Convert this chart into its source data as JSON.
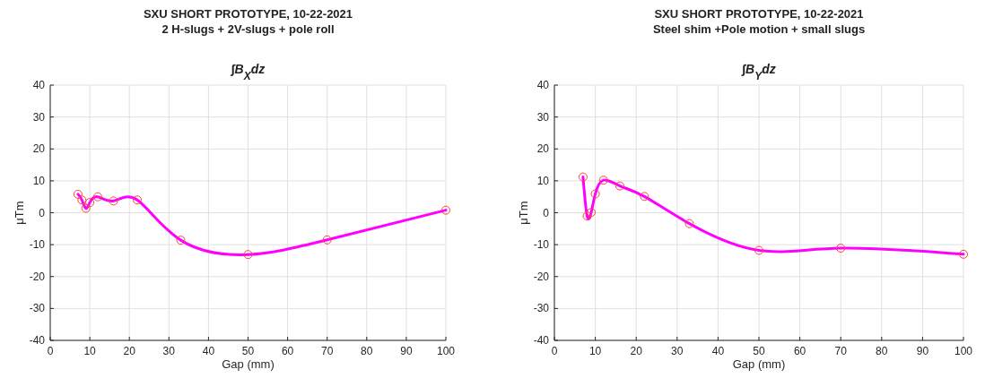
{
  "chart_data": [
    {
      "type": "line",
      "title": "SXU SHORT PROTOTYPE, 10-22-2021\n2 H-slugs + 2V-slugs + pole roll",
      "subtitle": "∫B$_{X}$dz",
      "xlabel": "Gap (mm)",
      "ylabel": "μTm",
      "xlim": [
        0,
        100
      ],
      "ylim": [
        -40,
        40
      ],
      "xticks": [
        0,
        10,
        20,
        30,
        40,
        50,
        60,
        70,
        80,
        90,
        100
      ],
      "yticks": [
        -40,
        -30,
        -20,
        -10,
        0,
        10,
        20,
        30,
        40
      ],
      "grid": true,
      "series": [
        {
          "color": "#ff00ff",
          "line_style": "solid",
          "marker": "none",
          "x": [
            7,
            8,
            9,
            10,
            12,
            16,
            22,
            33,
            50,
            70,
            100
          ],
          "values": [
            5.8,
            4.0,
            1.4,
            3.2,
            5.0,
            3.7,
            4.0,
            -8.6,
            -13.1,
            -8.5,
            0.8
          ]
        },
        {
          "type": "scatter",
          "color": "#ff4040",
          "marker": "circle",
          "x": [
            7,
            8,
            9,
            10,
            12,
            16,
            22,
            33,
            50,
            70,
            100
          ],
          "values": [
            5.8,
            4.0,
            1.4,
            3.2,
            5.0,
            3.7,
            4.0,
            -8.6,
            -13.1,
            -8.5,
            0.8
          ]
        }
      ]
    },
    {
      "type": "line",
      "title": "SXU SHORT PROTOTYPE, 10-22-2021\nSteel shim +Pole motion + small slugs",
      "subtitle": "∫B$_{Y}$dz",
      "xlabel": "Gap (mm)",
      "ylabel": "μTm",
      "xlim": [
        0,
        100
      ],
      "ylim": [
        -40,
        40
      ],
      "xticks": [
        0,
        10,
        20,
        30,
        40,
        50,
        60,
        70,
        80,
        90,
        100
      ],
      "yticks": [
        -40,
        -30,
        -20,
        -10,
        0,
        10,
        20,
        30,
        40
      ],
      "grid": true,
      "series": [
        {
          "color": "#ff00ff",
          "line_style": "solid",
          "marker": "none",
          "x": [
            7,
            8,
            9,
            10,
            12,
            16,
            22,
            33,
            50,
            70,
            100
          ],
          "values": [
            11.2,
            -1.0,
            0.1,
            5.9,
            10.2,
            8.4,
            5.1,
            -3.4,
            -11.8,
            -11.1,
            -13.0
          ]
        },
        {
          "type": "scatter",
          "color": "#ff4040",
          "marker": "circle",
          "x": [
            7,
            8,
            9,
            10,
            12,
            16,
            22,
            33,
            50,
            70,
            100
          ],
          "values": [
            11.2,
            -1.0,
            0.1,
            5.9,
            10.2,
            8.4,
            5.1,
            -3.4,
            -11.8,
            -11.1,
            -13.0
          ]
        }
      ]
    }
  ]
}
